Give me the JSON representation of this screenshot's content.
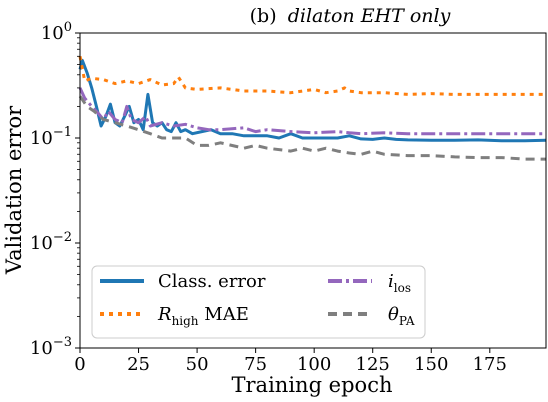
{
  "chart_data": {
    "type": "line",
    "title_prefix": "(b)",
    "title": "dilaton EHT only",
    "xlabel": "Training epoch",
    "ylabel": "Validation error",
    "xlim": [
      0,
      199
    ],
    "ylim": [
      0.001,
      1
    ],
    "yscale": "log",
    "x_ticks": [
      0,
      25,
      50,
      75,
      100,
      125,
      150,
      175
    ],
    "y_ticks": [
      {
        "value": 1,
        "base": "10",
        "exp": "0"
      },
      {
        "value": 0.1,
        "base": "10",
        "exp": "−1"
      },
      {
        "value": 0.01,
        "base": "10",
        "exp": "−2"
      },
      {
        "value": 0.001,
        "base": "10",
        "exp": "−3"
      }
    ],
    "grid": false,
    "legend_position": "lower-left",
    "legend": [
      {
        "main": "Class. error",
        "sub": "",
        "suffix": ""
      },
      {
        "main": "R",
        "sub": "high",
        "suffix": " MAE"
      },
      {
        "main": "i",
        "sub": "los",
        "suffix": ""
      },
      {
        "main": "θ",
        "sub": "PA",
        "suffix": ""
      }
    ],
    "series": [
      {
        "name": "Class. error",
        "color": "#1f77b4",
        "dash": "solid",
        "points": [
          [
            0,
            0.45
          ],
          [
            1,
            0.55
          ],
          [
            3,
            0.42
          ],
          [
            5,
            0.3
          ],
          [
            7,
            0.2
          ],
          [
            9,
            0.13
          ],
          [
            11,
            0.16
          ],
          [
            13,
            0.21
          ],
          [
            15,
            0.14
          ],
          [
            17,
            0.13
          ],
          [
            19,
            0.16
          ],
          [
            21,
            0.2
          ],
          [
            23,
            0.14
          ],
          [
            25,
            0.15
          ],
          [
            27,
            0.12
          ],
          [
            29,
            0.26
          ],
          [
            31,
            0.14
          ],
          [
            33,
            0.13
          ],
          [
            35,
            0.14
          ],
          [
            37,
            0.12
          ],
          [
            39,
            0.115
          ],
          [
            41,
            0.14
          ],
          [
            43,
            0.115
          ],
          [
            45,
            0.12
          ],
          [
            48,
            0.11
          ],
          [
            52,
            0.115
          ],
          [
            56,
            0.12
          ],
          [
            60,
            0.11
          ],
          [
            65,
            0.11
          ],
          [
            70,
            0.105
          ],
          [
            75,
            0.105
          ],
          [
            80,
            0.105
          ],
          [
            85,
            0.1
          ],
          [
            90,
            0.11
          ],
          [
            95,
            0.1
          ],
          [
            100,
            0.1
          ],
          [
            105,
            0.1
          ],
          [
            110,
            0.1
          ],
          [
            115,
            0.105
          ],
          [
            120,
            0.098
          ],
          [
            125,
            0.097
          ],
          [
            130,
            0.1
          ],
          [
            135,
            0.097
          ],
          [
            140,
            0.096
          ],
          [
            150,
            0.095
          ],
          [
            160,
            0.095
          ],
          [
            170,
            0.096
          ],
          [
            180,
            0.094
          ],
          [
            190,
            0.094
          ],
          [
            199,
            0.095
          ]
        ]
      },
      {
        "name": "R_high MAE",
        "color": "#ff7f0e",
        "dash": "dotted",
        "points": [
          [
            0,
            0.6
          ],
          [
            2,
            0.35
          ],
          [
            5,
            0.37
          ],
          [
            10,
            0.36
          ],
          [
            15,
            0.33
          ],
          [
            20,
            0.35
          ],
          [
            25,
            0.33
          ],
          [
            30,
            0.36
          ],
          [
            35,
            0.32
          ],
          [
            40,
            0.33
          ],
          [
            42,
            0.38
          ],
          [
            45,
            0.3
          ],
          [
            50,
            0.29
          ],
          [
            60,
            0.3
          ],
          [
            70,
            0.28
          ],
          [
            80,
            0.28
          ],
          [
            90,
            0.27
          ],
          [
            100,
            0.29
          ],
          [
            105,
            0.27
          ],
          [
            110,
            0.28
          ],
          [
            113,
            0.3
          ],
          [
            115,
            0.28
          ],
          [
            120,
            0.27
          ],
          [
            130,
            0.27
          ],
          [
            140,
            0.26
          ],
          [
            150,
            0.265
          ],
          [
            160,
            0.26
          ],
          [
            170,
            0.26
          ],
          [
            180,
            0.26
          ],
          [
            190,
            0.26
          ],
          [
            199,
            0.26
          ]
        ]
      },
      {
        "name": "i_los",
        "color": "#9467bd",
        "dash": "dashdot",
        "points": [
          [
            0,
            0.3
          ],
          [
            2,
            0.24
          ],
          [
            5,
            0.2
          ],
          [
            8,
            0.17
          ],
          [
            10,
            0.15
          ],
          [
            12,
            0.18
          ],
          [
            15,
            0.15
          ],
          [
            18,
            0.14
          ],
          [
            20,
            0.2
          ],
          [
            22,
            0.15
          ],
          [
            25,
            0.14
          ],
          [
            28,
            0.16
          ],
          [
            30,
            0.13
          ],
          [
            35,
            0.14
          ],
          [
            40,
            0.13
          ],
          [
            45,
            0.135
          ],
          [
            50,
            0.125
          ],
          [
            55,
            0.12
          ],
          [
            60,
            0.12
          ],
          [
            70,
            0.125
          ],
          [
            75,
            0.115
          ],
          [
            80,
            0.12
          ],
          [
            90,
            0.115
          ],
          [
            100,
            0.112
          ],
          [
            110,
            0.115
          ],
          [
            115,
            0.112
          ],
          [
            120,
            0.11
          ],
          [
            130,
            0.112
          ],
          [
            140,
            0.11
          ],
          [
            150,
            0.11
          ],
          [
            160,
            0.11
          ],
          [
            170,
            0.11
          ],
          [
            180,
            0.11
          ],
          [
            190,
            0.11
          ],
          [
            199,
            0.11
          ]
        ]
      },
      {
        "name": "θ_PA",
        "color": "#7f7f7f",
        "dash": "dashed",
        "points": [
          [
            0,
            0.25
          ],
          [
            3,
            0.2
          ],
          [
            6,
            0.18
          ],
          [
            10,
            0.15
          ],
          [
            15,
            0.14
          ],
          [
            20,
            0.13
          ],
          [
            25,
            0.12
          ],
          [
            30,
            0.11
          ],
          [
            35,
            0.1
          ],
          [
            40,
            0.1
          ],
          [
            45,
            0.1
          ],
          [
            50,
            0.085
          ],
          [
            55,
            0.085
          ],
          [
            60,
            0.09
          ],
          [
            70,
            0.08
          ],
          [
            75,
            0.085
          ],
          [
            80,
            0.08
          ],
          [
            90,
            0.075
          ],
          [
            95,
            0.08
          ],
          [
            100,
            0.075
          ],
          [
            105,
            0.08
          ],
          [
            110,
            0.075
          ],
          [
            115,
            0.072
          ],
          [
            120,
            0.07
          ],
          [
            125,
            0.075
          ],
          [
            130,
            0.07
          ],
          [
            140,
            0.068
          ],
          [
            150,
            0.068
          ],
          [
            160,
            0.066
          ],
          [
            170,
            0.065
          ],
          [
            180,
            0.065
          ],
          [
            190,
            0.063
          ],
          [
            199,
            0.063
          ]
        ]
      }
    ]
  }
}
